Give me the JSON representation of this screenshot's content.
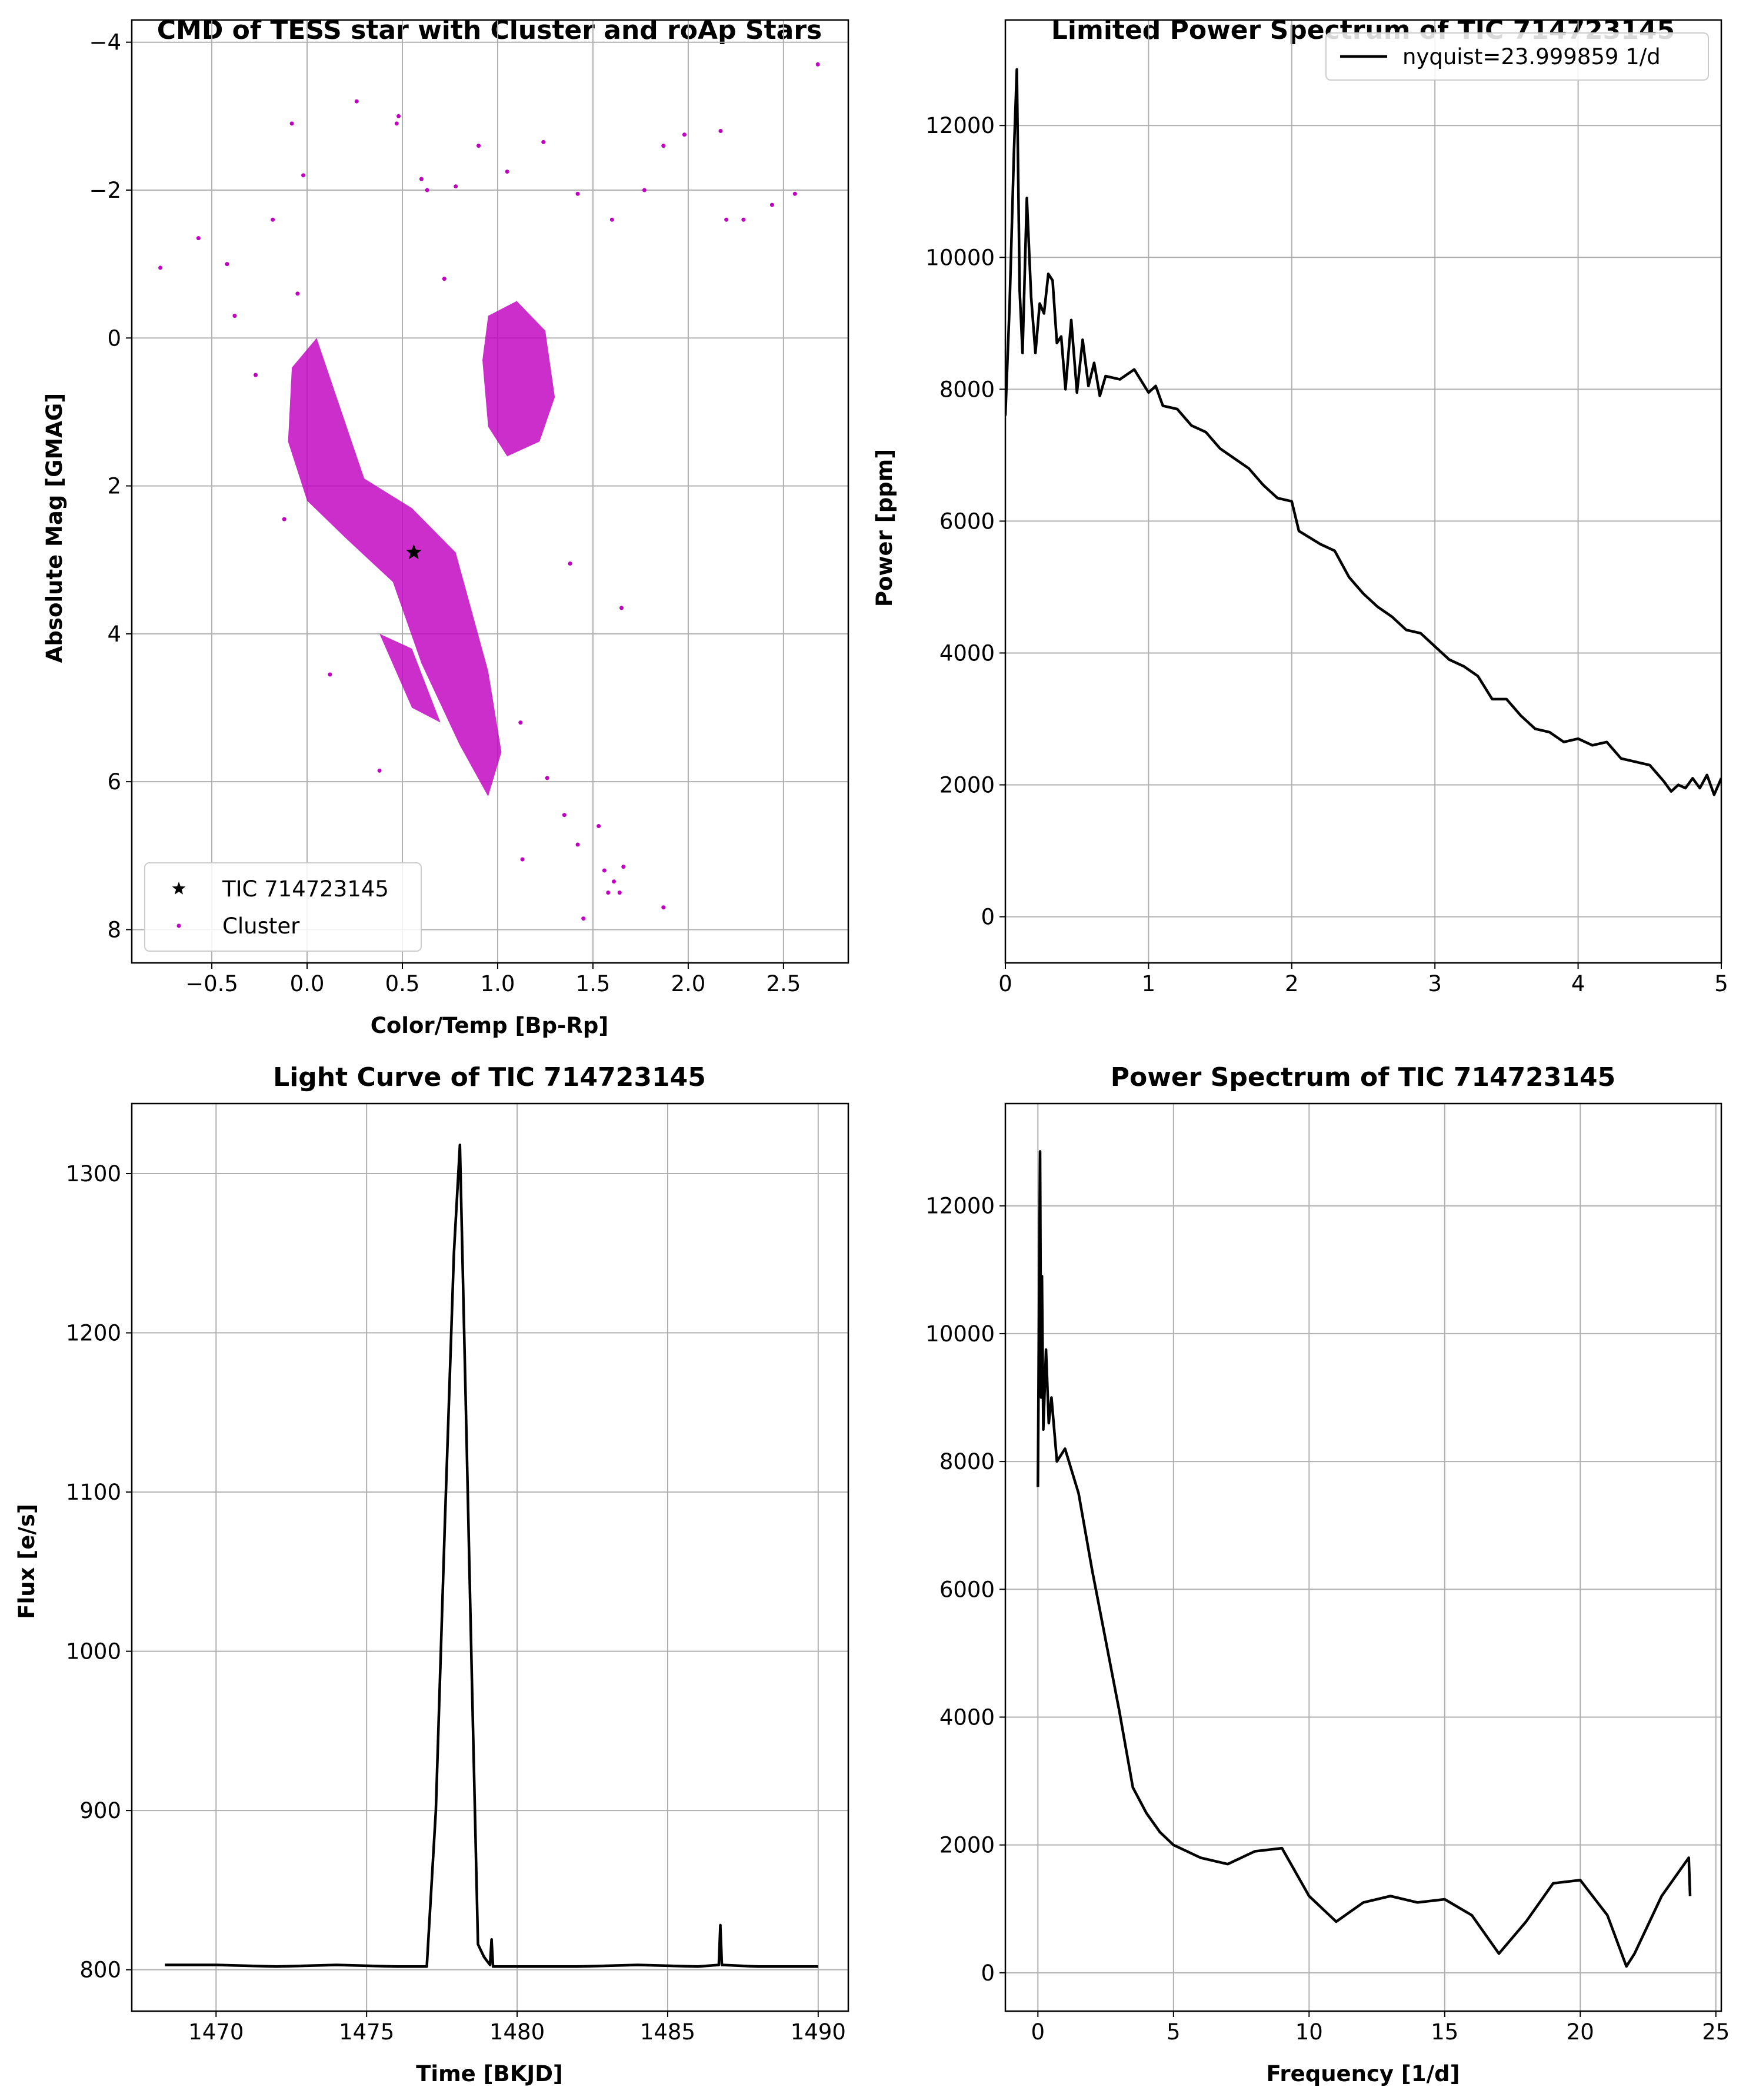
{
  "chart_data": [
    {
      "type": "scatter",
      "title": "CMD of TESS star with Cluster and roAp Stars",
      "xlabel": "Color/Temp [Bp-Rp]",
      "ylabel": "Absolute Mag [GMAG]",
      "xlim": [
        -0.92,
        2.84
      ],
      "ylim": [
        8.45,
        -4.3
      ],
      "y_inverted": true,
      "xticks": [
        "−0.5",
        "0.0",
        "0.5",
        "1.0",
        "1.5",
        "2.0",
        "2.5"
      ],
      "yticks": [
        "−4",
        "−2",
        "0",
        "2",
        "4",
        "6",
        "8"
      ],
      "grid": true,
      "legend_position": "lower-left",
      "series": [
        {
          "name": "TIC 714723145",
          "marker": "star",
          "color": "#000000",
          "points": [
            [
              0.56,
              2.9
            ]
          ]
        },
        {
          "name": "Cluster",
          "marker": "point",
          "color": "#bf00bf",
          "points": [
            [
              -0.77,
              -0.95
            ],
            [
              -0.57,
              -1.35
            ],
            [
              -0.42,
              -1.0
            ],
            [
              -0.38,
              -0.3
            ],
            [
              -0.27,
              0.5
            ],
            [
              -0.18,
              -1.6
            ],
            [
              -0.12,
              2.45
            ],
            [
              -0.08,
              -2.9
            ],
            [
              -0.05,
              -0.6
            ],
            [
              -0.02,
              -2.2
            ],
            [
              0.26,
              -3.2
            ],
            [
              0.47,
              -2.9
            ],
            [
              0.48,
              -3.0
            ],
            [
              0.6,
              -2.15
            ],
            [
              0.63,
              -2.0
            ],
            [
              0.72,
              -0.8
            ],
            [
              0.78,
              -2.05
            ],
            [
              0.9,
              -2.6
            ],
            [
              1.05,
              -2.25
            ],
            [
              1.24,
              -2.65
            ],
            [
              1.42,
              -1.95
            ],
            [
              1.6,
              -1.6
            ],
            [
              1.77,
              -2.0
            ],
            [
              1.87,
              -2.6
            ],
            [
              1.98,
              -2.75
            ],
            [
              2.17,
              -2.8
            ],
            [
              2.2,
              -1.6
            ],
            [
              2.29,
              -1.6
            ],
            [
              2.44,
              -1.8
            ],
            [
              2.56,
              -1.95
            ],
            [
              2.68,
              -3.7
            ],
            [
              1.38,
              3.05
            ],
            [
              1.65,
              3.65
            ],
            [
              0.38,
              5.85
            ],
            [
              0.12,
              4.55
            ],
            [
              1.13,
              7.05
            ],
            [
              1.42,
              6.85
            ],
            [
              1.56,
              7.2
            ],
            [
              1.61,
              7.35
            ],
            [
              1.66,
              7.15
            ],
            [
              1.58,
              7.5
            ],
            [
              1.64,
              7.5
            ],
            [
              1.45,
              7.85
            ],
            [
              1.87,
              7.7
            ],
            [
              1.53,
              6.6
            ],
            [
              1.35,
              6.45
            ],
            [
              1.26,
              5.95
            ],
            [
              1.12,
              5.2
            ]
          ]
        }
      ]
    },
    {
      "type": "line",
      "title": "Limited Power Spectrum of TIC 714723145",
      "xlabel": "",
      "ylabel": "Power [ppm]",
      "xlim": [
        0,
        5
      ],
      "ylim": [
        -700,
        13600
      ],
      "xticks": [
        "0",
        "1",
        "2",
        "3",
        "4",
        "5"
      ],
      "yticks": [
        "0",
        "2000",
        "4000",
        "6000",
        "8000",
        "10000",
        "12000"
      ],
      "grid": true,
      "legend_position": "top-right",
      "series": [
        {
          "name": "nyquist=23.999859 1/d",
          "color": "#000000",
          "points": [
            [
              0,
              7600
            ],
            [
              0.03,
              9300
            ],
            [
              0.06,
              11600
            ],
            [
              0.08,
              12850
            ],
            [
              0.1,
              9500
            ],
            [
              0.12,
              8550
            ],
            [
              0.15,
              10900
            ],
            [
              0.18,
              9400
            ],
            [
              0.21,
              8550
            ],
            [
              0.24,
              9300
            ],
            [
              0.27,
              9150
            ],
            [
              0.3,
              9750
            ],
            [
              0.33,
              9650
            ],
            [
              0.36,
              8700
            ],
            [
              0.39,
              8800
            ],
            [
              0.42,
              8000
            ],
            [
              0.46,
              9050
            ],
            [
              0.5,
              7950
            ],
            [
              0.54,
              8750
            ],
            [
              0.58,
              8050
            ],
            [
              0.62,
              8400
            ],
            [
              0.66,
              7900
            ],
            [
              0.7,
              8200
            ],
            [
              0.8,
              8150
            ],
            [
              0.9,
              8300
            ],
            [
              1.0,
              7950
            ],
            [
              1.05,
              8050
            ],
            [
              1.1,
              7750
            ],
            [
              1.2,
              7700
            ],
            [
              1.3,
              7450
            ],
            [
              1.4,
              7350
            ],
            [
              1.5,
              7100
            ],
            [
              1.6,
              6950
            ],
            [
              1.7,
              6800
            ],
            [
              1.8,
              6550
            ],
            [
              1.9,
              6350
            ],
            [
              2.0,
              6300
            ],
            [
              2.05,
              5850
            ],
            [
              2.2,
              5650
            ],
            [
              2.3,
              5550
            ],
            [
              2.4,
              5150
            ],
            [
              2.5,
              4900
            ],
            [
              2.6,
              4700
            ],
            [
              2.7,
              4550
            ],
            [
              2.8,
              4350
            ],
            [
              2.9,
              4300
            ],
            [
              3.0,
              4100
            ],
            [
              3.1,
              3900
            ],
            [
              3.2,
              3800
            ],
            [
              3.3,
              3650
            ],
            [
              3.4,
              3300
            ],
            [
              3.5,
              3300
            ],
            [
              3.6,
              3050
            ],
            [
              3.7,
              2850
            ],
            [
              3.8,
              2800
            ],
            [
              3.9,
              2650
            ],
            [
              4.0,
              2700
            ],
            [
              4.1,
              2600
            ],
            [
              4.2,
              2650
            ],
            [
              4.3,
              2400
            ],
            [
              4.4,
              2350
            ],
            [
              4.5,
              2300
            ],
            [
              4.6,
              2050
            ],
            [
              4.65,
              1900
            ],
            [
              4.7,
              2000
            ],
            [
              4.75,
              1950
            ],
            [
              4.8,
              2100
            ],
            [
              4.85,
              1950
            ],
            [
              4.9,
              2150
            ],
            [
              4.95,
              1850
            ],
            [
              5.0,
              2100
            ]
          ]
        }
      ]
    },
    {
      "type": "line",
      "title": "Light Curve of TIC 714723145",
      "xlabel": "Time [BKJD]",
      "ylabel": "Flux [e/s]",
      "xlim": [
        1467.2,
        1491.0
      ],
      "ylim": [
        774,
        1344
      ],
      "xticks": [
        "1470",
        "1475",
        "1480",
        "1485",
        "1490"
      ],
      "yticks": [
        "800",
        "900",
        "1000",
        "1100",
        "1200",
        "1300"
      ],
      "grid": true,
      "series": [
        {
          "name": "",
          "color": "#000000",
          "points": [
            [
              1468.3,
              803
            ],
            [
              1470,
              803
            ],
            [
              1472,
              802
            ],
            [
              1474,
              803
            ],
            [
              1476,
              802
            ],
            [
              1477.0,
              802
            ],
            [
              1477.3,
              900
            ],
            [
              1477.6,
              1080
            ],
            [
              1477.9,
              1250
            ],
            [
              1478.1,
              1318
            ],
            [
              1478.3,
              1150
            ],
            [
              1478.5,
              980
            ],
            [
              1478.7,
              816
            ],
            [
              1478.9,
              808
            ],
            [
              1479.1,
              803
            ],
            [
              1479.15,
              819
            ],
            [
              1479.2,
              802
            ],
            [
              1480,
              802
            ],
            [
              1482,
              802
            ],
            [
              1484,
              803
            ],
            [
              1486,
              802
            ],
            [
              1486.7,
              803
            ],
            [
              1486.75,
              828
            ],
            [
              1486.8,
              803
            ],
            [
              1488,
              802
            ],
            [
              1490,
              802
            ]
          ]
        }
      ]
    },
    {
      "type": "line",
      "title": "Power Spectrum of TIC 714723145",
      "xlabel": "Frequency [1/d]",
      "ylabel": "",
      "xlim": [
        -1.2,
        25.2
      ],
      "ylim": [
        -600,
        13600
      ],
      "xticks": [
        "0",
        "5",
        "10",
        "15",
        "20",
        "25"
      ],
      "yticks": [
        "0",
        "2000",
        "4000",
        "6000",
        "8000",
        "10000",
        "12000"
      ],
      "grid": true,
      "series": [
        {
          "name": "",
          "color": "#000000",
          "points": [
            [
              0,
              7600
            ],
            [
              0.05,
              11000
            ],
            [
              0.08,
              12850
            ],
            [
              0.12,
              9000
            ],
            [
              0.15,
              10900
            ],
            [
              0.2,
              8500
            ],
            [
              0.3,
              9750
            ],
            [
              0.4,
              8600
            ],
            [
              0.5,
              9000
            ],
            [
              0.7,
              8000
            ],
            [
              1.0,
              8200
            ],
            [
              1.5,
              7500
            ],
            [
              2.0,
              6300
            ],
            [
              2.5,
              5200
            ],
            [
              3.0,
              4100
            ],
            [
              3.5,
              2900
            ],
            [
              4.0,
              2500
            ],
            [
              4.5,
              2200
            ],
            [
              5.0,
              2000
            ],
            [
              6.0,
              1800
            ],
            [
              7.0,
              1700
            ],
            [
              8.0,
              1900
            ],
            [
              9.0,
              1950
            ],
            [
              10.0,
              1200
            ],
            [
              11.0,
              800
            ],
            [
              12.0,
              1100
            ],
            [
              13.0,
              1200
            ],
            [
              14.0,
              1100
            ],
            [
              15.0,
              1150
            ],
            [
              16.0,
              900
            ],
            [
              17.0,
              300
            ],
            [
              18.0,
              800
            ],
            [
              19.0,
              1400
            ],
            [
              20.0,
              1450
            ],
            [
              21.0,
              900
            ],
            [
              21.7,
              100
            ],
            [
              22.0,
              300
            ],
            [
              23.0,
              1200
            ],
            [
              24.0,
              1800
            ],
            [
              24.05,
              1200
            ]
          ]
        }
      ]
    }
  ]
}
